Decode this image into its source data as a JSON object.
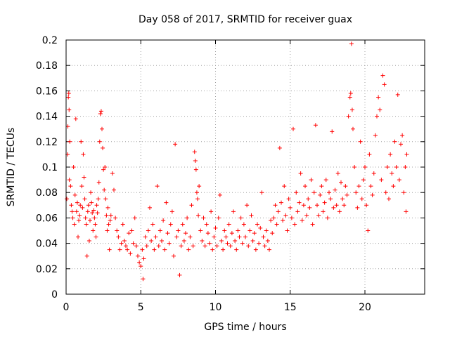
{
  "chart_data": {
    "type": "scatter",
    "title": "Day 058 of 2017, SRMTID for receiver guax",
    "xlabel": "GPS time / hours",
    "ylabel": "SRMTID / TECUs",
    "xlim": [
      0,
      24
    ],
    "ylim": [
      0,
      0.2
    ],
    "xticks": [
      0,
      5,
      10,
      15,
      20
    ],
    "xtick_labels": [
      "0",
      "5",
      "10",
      "15",
      "20"
    ],
    "yticks": [
      0,
      0.02,
      0.04,
      0.06,
      0.08,
      0.1,
      0.12,
      0.14,
      0.16,
      0.18,
      0.2
    ],
    "ytick_labels": [
      "0",
      "0.02",
      "0.04",
      "0.06",
      "0.08",
      "0.1",
      "0.12",
      "0.14",
      "0.16",
      "0.18",
      "0.2"
    ],
    "grid": true,
    "marker": "plus",
    "marker_color": "#ff0000",
    "series": [
      {
        "name": "SRMTID",
        "points": [
          [
            0.05,
            0.075
          ],
          [
            0.1,
            0.11
          ],
          [
            0.12,
            0.132
          ],
          [
            0.15,
            0.155
          ],
          [
            0.18,
            0.158
          ],
          [
            0.2,
            0.145
          ],
          [
            0.22,
            0.09
          ],
          [
            0.25,
            0.12
          ],
          [
            0.3,
            0.085
          ],
          [
            0.35,
            0.07
          ],
          [
            0.4,
            0.065
          ],
          [
            0.45,
            0.06
          ],
          [
            0.5,
            0.1
          ],
          [
            0.55,
            0.055
          ],
          [
            0.6,
            0.078
          ],
          [
            0.65,
            0.138
          ],
          [
            0.7,
            0.065
          ],
          [
            0.75,
            0.072
          ],
          [
            0.8,
            0.045
          ],
          [
            0.85,
            0.058
          ],
          [
            0.9,
            0.062
          ],
          [
            0.95,
            0.07
          ],
          [
            1.0,
            0.12
          ],
          [
            1.05,
            0.085
          ],
          [
            1.1,
            0.068
          ],
          [
            1.15,
            0.11
          ],
          [
            1.2,
            0.092
          ],
          [
            1.25,
            0.075
          ],
          [
            1.3,
            0.06
          ],
          [
            1.35,
            0.055
          ],
          [
            1.4,
            0.03
          ],
          [
            1.45,
            0.065
          ],
          [
            1.5,
            0.07
          ],
          [
            1.55,
            0.042
          ],
          [
            1.6,
            0.058
          ],
          [
            1.65,
            0.08
          ],
          [
            1.7,
            0.072
          ],
          [
            1.75,
            0.064
          ],
          [
            1.8,
            0.05
          ],
          [
            1.85,
            0.066
          ],
          [
            1.9,
            0.06
          ],
          [
            1.95,
            0.055
          ],
          [
            2.0,
            0.045
          ],
          [
            2.05,
            0.07
          ],
          [
            2.1,
            0.064
          ],
          [
            2.15,
            0.075
          ],
          [
            2.2,
            0.088
          ],
          [
            2.25,
            0.12
          ],
          [
            2.3,
            0.142
          ],
          [
            2.35,
            0.144
          ],
          [
            2.4,
            0.13
          ],
          [
            2.45,
            0.115
          ],
          [
            2.5,
            0.098
          ],
          [
            2.55,
            0.082
          ],
          [
            2.6,
            0.1
          ],
          [
            2.65,
            0.075
          ],
          [
            2.7,
            0.062
          ],
          [
            2.75,
            0.05
          ],
          [
            2.8,
            0.068
          ],
          [
            2.85,
            0.055
          ],
          [
            2.9,
            0.035
          ],
          [
            2.95,
            0.058
          ],
          [
            3.0,
            0.062
          ],
          [
            3.1,
            0.095
          ],
          [
            3.2,
            0.082
          ],
          [
            3.3,
            0.06
          ],
          [
            3.4,
            0.05
          ],
          [
            3.5,
            0.045
          ],
          [
            3.6,
            0.035
          ],
          [
            3.7,
            0.04
          ],
          [
            3.8,
            0.055
          ],
          [
            3.9,
            0.042
          ],
          [
            4.0,
            0.038
          ],
          [
            4.1,
            0.035
          ],
          [
            4.2,
            0.048
          ],
          [
            4.3,
            0.032
          ],
          [
            4.4,
            0.05
          ],
          [
            4.5,
            0.04
          ],
          [
            4.6,
            0.06
          ],
          [
            4.7,
            0.038
          ],
          [
            4.8,
            0.03
          ],
          [
            4.9,
            0.025
          ],
          [
            5.0,
            0.022
          ],
          [
            5.1,
            0.035
          ],
          [
            5.15,
            0.012
          ],
          [
            5.2,
            0.028
          ],
          [
            5.3,
            0.045
          ],
          [
            5.4,
            0.038
          ],
          [
            5.5,
            0.05
          ],
          [
            5.6,
            0.068
          ],
          [
            5.7,
            0.042
          ],
          [
            5.8,
            0.055
          ],
          [
            5.9,
            0.035
          ],
          [
            6.0,
            0.045
          ],
          [
            6.1,
            0.085
          ],
          [
            6.2,
            0.038
          ],
          [
            6.3,
            0.05
          ],
          [
            6.4,
            0.042
          ],
          [
            6.5,
            0.058
          ],
          [
            6.6,
            0.035
          ],
          [
            6.7,
            0.072
          ],
          [
            6.8,
            0.048
          ],
          [
            6.9,
            0.04
          ],
          [
            7.0,
            0.055
          ],
          [
            7.1,
            0.065
          ],
          [
            7.2,
            0.03
          ],
          [
            7.3,
            0.118
          ],
          [
            7.4,
            0.045
          ],
          [
            7.5,
            0.05
          ],
          [
            7.6,
            0.015
          ],
          [
            7.7,
            0.038
          ],
          [
            7.8,
            0.055
          ],
          [
            7.9,
            0.042
          ],
          [
            8.0,
            0.048
          ],
          [
            8.1,
            0.06
          ],
          [
            8.2,
            0.035
          ],
          [
            8.3,
            0.045
          ],
          [
            8.4,
            0.07
          ],
          [
            8.5,
            0.038
          ],
          [
            8.6,
            0.112
          ],
          [
            8.65,
            0.105
          ],
          [
            8.7,
            0.098
          ],
          [
            8.75,
            0.08
          ],
          [
            8.8,
            0.075
          ],
          [
            8.85,
            0.062
          ],
          [
            8.9,
            0.085
          ],
          [
            9.0,
            0.05
          ],
          [
            9.1,
            0.042
          ],
          [
            9.2,
            0.06
          ],
          [
            9.3,
            0.038
          ],
          [
            9.4,
            0.055
          ],
          [
            9.5,
            0.048
          ],
          [
            9.6,
            0.04
          ],
          [
            9.7,
            0.065
          ],
          [
            9.8,
            0.035
          ],
          [
            9.9,
            0.045
          ],
          [
            10.0,
            0.052
          ],
          [
            10.1,
            0.038
          ],
          [
            10.2,
            0.06
          ],
          [
            10.3,
            0.078
          ],
          [
            10.4,
            0.042
          ],
          [
            10.5,
            0.035
          ],
          [
            10.6,
            0.05
          ],
          [
            10.7,
            0.045
          ],
          [
            10.8,
            0.04
          ],
          [
            10.9,
            0.055
          ],
          [
            11.0,
            0.038
          ],
          [
            11.1,
            0.048
          ],
          [
            11.2,
            0.065
          ],
          [
            11.3,
            0.042
          ],
          [
            11.4,
            0.035
          ],
          [
            11.5,
            0.05
          ],
          [
            11.6,
            0.045
          ],
          [
            11.7,
            0.06
          ],
          [
            11.8,
            0.04
          ],
          [
            11.9,
            0.055
          ],
          [
            12.0,
            0.045
          ],
          [
            12.1,
            0.07
          ],
          [
            12.2,
            0.038
          ],
          [
            12.3,
            0.05
          ],
          [
            12.4,
            0.062
          ],
          [
            12.5,
            0.042
          ],
          [
            12.6,
            0.048
          ],
          [
            12.7,
            0.035
          ],
          [
            12.8,
            0.055
          ],
          [
            12.9,
            0.04
          ],
          [
            13.0,
            0.052
          ],
          [
            13.1,
            0.08
          ],
          [
            13.2,
            0.045
          ],
          [
            13.3,
            0.038
          ],
          [
            13.4,
            0.05
          ],
          [
            13.5,
            0.042
          ],
          [
            13.6,
            0.035
          ],
          [
            13.7,
            0.058
          ],
          [
            13.8,
            0.048
          ],
          [
            13.9,
            0.06
          ],
          [
            14.0,
            0.07
          ],
          [
            14.1,
            0.055
          ],
          [
            14.2,
            0.065
          ],
          [
            14.3,
            0.115
          ],
          [
            14.4,
            0.072
          ],
          [
            14.5,
            0.058
          ],
          [
            14.6,
            0.085
          ],
          [
            14.7,
            0.062
          ],
          [
            14.8,
            0.05
          ],
          [
            14.9,
            0.075
          ],
          [
            15.0,
            0.068
          ],
          [
            15.1,
            0.06
          ],
          [
            15.2,
            0.13
          ],
          [
            15.3,
            0.055
          ],
          [
            15.4,
            0.08
          ],
          [
            15.5,
            0.065
          ],
          [
            15.6,
            0.072
          ],
          [
            15.7,
            0.095
          ],
          [
            15.8,
            0.058
          ],
          [
            15.9,
            0.07
          ],
          [
            16.0,
            0.085
          ],
          [
            16.1,
            0.062
          ],
          [
            16.2,
            0.075
          ],
          [
            16.3,
            0.068
          ],
          [
            16.4,
            0.09
          ],
          [
            16.5,
            0.055
          ],
          [
            16.6,
            0.08
          ],
          [
            16.7,
            0.133
          ],
          [
            16.8,
            0.07
          ],
          [
            16.9,
            0.062
          ],
          [
            17.0,
            0.078
          ],
          [
            17.1,
            0.085
          ],
          [
            17.2,
            0.065
          ],
          [
            17.3,
            0.072
          ],
          [
            17.4,
            0.09
          ],
          [
            17.5,
            0.06
          ],
          [
            17.6,
            0.08
          ],
          [
            17.7,
            0.075
          ],
          [
            17.8,
            0.128
          ],
          [
            17.9,
            0.068
          ],
          [
            18.0,
            0.082
          ],
          [
            18.1,
            0.07
          ],
          [
            18.2,
            0.095
          ],
          [
            18.3,
            0.065
          ],
          [
            18.4,
            0.088
          ],
          [
            18.5,
            0.075
          ],
          [
            18.6,
            0.07
          ],
          [
            18.7,
            0.085
          ],
          [
            18.8,
            0.078
          ],
          [
            18.9,
            0.14
          ],
          [
            19.0,
            0.155
          ],
          [
            19.05,
            0.158
          ],
          [
            19.1,
            0.197
          ],
          [
            19.15,
            0.145
          ],
          [
            19.2,
            0.13
          ],
          [
            19.3,
            0.1
          ],
          [
            19.4,
            0.08
          ],
          [
            19.5,
            0.068
          ],
          [
            19.6,
            0.085
          ],
          [
            19.7,
            0.12
          ],
          [
            19.8,
            0.075
          ],
          [
            19.9,
            0.09
          ],
          [
            20.0,
            0.1
          ],
          [
            20.1,
            0.07
          ],
          [
            20.2,
            0.05
          ],
          [
            20.3,
            0.11
          ],
          [
            20.4,
            0.085
          ],
          [
            20.5,
            0.078
          ],
          [
            20.6,
            0.095
          ],
          [
            20.7,
            0.125
          ],
          [
            20.8,
            0.14
          ],
          [
            20.9,
            0.155
          ],
          [
            21.0,
            0.145
          ],
          [
            21.1,
            0.09
          ],
          [
            21.2,
            0.172
          ],
          [
            21.3,
            0.165
          ],
          [
            21.4,
            0.08
          ],
          [
            21.5,
            0.1
          ],
          [
            21.6,
            0.075
          ],
          [
            21.7,
            0.11
          ],
          [
            21.8,
            0.095
          ],
          [
            21.9,
            0.085
          ],
          [
            22.0,
            0.12
          ],
          [
            22.1,
            0.1
          ],
          [
            22.2,
            0.157
          ],
          [
            22.3,
            0.09
          ],
          [
            22.4,
            0.118
          ],
          [
            22.5,
            0.125
          ],
          [
            22.6,
            0.08
          ],
          [
            22.7,
            0.1
          ],
          [
            22.75,
            0.065
          ],
          [
            22.8,
            0.11
          ]
        ]
      }
    ]
  }
}
